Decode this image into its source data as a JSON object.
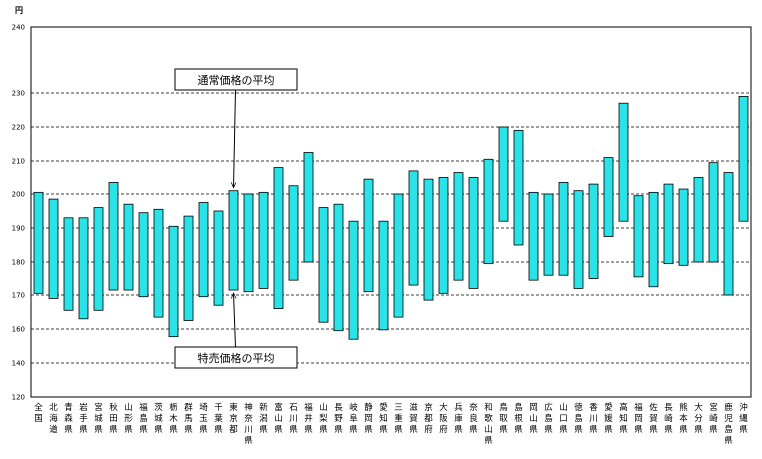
{
  "chart_data": {
    "type": "bar",
    "subtype": "floating-range",
    "y_unit": "円",
    "ylim": [
      120,
      240
    ],
    "yticks": [
      120,
      140,
      160,
      170,
      180,
      190,
      200,
      210,
      220,
      230,
      240
    ],
    "categories": [
      "全国",
      "北海道",
      "青森県",
      "岩手県",
      "宮城県",
      "秋田県",
      "山形県",
      "福島県",
      "茨城県",
      "栃木県",
      "群馬県",
      "埼玉県",
      "千葉県",
      "東京都",
      "神奈川県",
      "新潟県",
      "富山県",
      "石川県",
      "福井県",
      "山梨県",
      "長野県",
      "岐阜県",
      "静岡県",
      "愛知県",
      "三重県",
      "滋賀県",
      "京都府",
      "大阪府",
      "兵庫県",
      "奈良県",
      "和歌山県",
      "鳥取県",
      "島根県",
      "岡山県",
      "広島県",
      "山口県",
      "徳島県",
      "香川県",
      "愛媛県",
      "高知県",
      "福岡県",
      "佐賀県",
      "長崎県",
      "熊本県",
      "大分県",
      "宮崎県",
      "鹿児島県",
      "沖縄県"
    ],
    "series": [
      {
        "name": "通常価格の平均",
        "values": [
          200.5,
          198.5,
          193,
          193,
          196,
          203.5,
          197,
          194.5,
          195.5,
          190.5,
          193.5,
          197.5,
          195,
          201,
          200,
          200.5,
          208,
          202.5,
          212.5,
          196,
          197,
          192,
          204.5,
          192,
          200,
          207,
          204.5,
          205,
          206.5,
          205,
          210.5,
          220,
          219,
          200.5,
          200,
          203.5,
          201,
          203,
          211,
          227,
          199.5,
          200.5,
          203,
          201.5,
          205,
          209.5,
          206.5,
          229
        ]
      },
      {
        "name": "特売価格の平均",
        "values": [
          170.5,
          169,
          165.5,
          163,
          165.5,
          171.5,
          171.5,
          169.5,
          163.5,
          155.5,
          162.5,
          169.5,
          167,
          171.5,
          171,
          172,
          166,
          174.5,
          180,
          162,
          159,
          154,
          171,
          159.5,
          163.5,
          173,
          168.5,
          170.5,
          174.5,
          172,
          179.5,
          192,
          185,
          174.5,
          176,
          176,
          172,
          175,
          187.5,
          192,
          175.5,
          172.5,
          179.5,
          179,
          180,
          180,
          170,
          192
        ]
      }
    ],
    "annotations": [
      {
        "text": "通常価格の平均",
        "target_category": "東京都",
        "target_series": "通常価格の平均"
      },
      {
        "text": "特売価格の平均",
        "target_category": "東京都",
        "target_series": "特売価格の平均"
      }
    ],
    "bar_color": "#29e3e8",
    "grid": true
  }
}
